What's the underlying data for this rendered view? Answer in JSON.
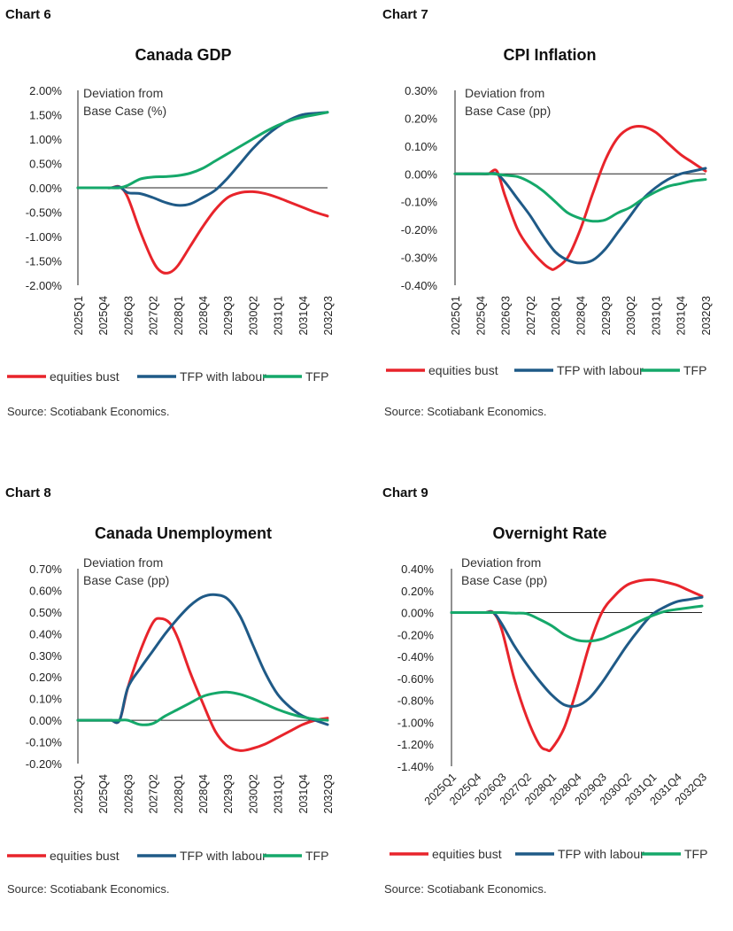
{
  "chart_data": [
    {
      "type": "line",
      "chart_label": "Chart 6",
      "title": "Canada GDP",
      "annotation": [
        "Deviation from",
        "Base Case (%)"
      ],
      "x": [
        "2025Q1",
        "2025Q4",
        "2026Q3",
        "2027Q2",
        "2028Q1",
        "2028Q4",
        "2029Q3",
        "2030Q2",
        "2031Q1",
        "2031Q4",
        "2032Q3"
      ],
      "ylim": [
        -2.0,
        2.0
      ],
      "yticks": [
        2.0,
        1.5,
        1.0,
        0.5,
        0.0,
        -0.5,
        -1.0,
        -1.5,
        -2.0
      ],
      "tick_labels": [
        "2.00%",
        "1.50%",
        "1.00%",
        "0.50%",
        "0.00%",
        "-0.50%",
        "-1.00%",
        "-1.50%",
        "-2.00%"
      ],
      "series": [
        {
          "name": "equities bust",
          "color": "#e8242b",
          "x": [
            0,
            1,
            1.33,
            1.67,
            2,
            2.5,
            3,
            3.33,
            3.67,
            4,
            4.5,
            5,
            5.5,
            6,
            6.5,
            7,
            7.5,
            8,
            8.5,
            9,
            9.5,
            10
          ],
          "values": [
            0,
            0,
            0,
            0.02,
            -0.2,
            -0.9,
            -1.5,
            -1.72,
            -1.74,
            -1.6,
            -1.2,
            -0.8,
            -0.45,
            -0.2,
            -0.1,
            -0.08,
            -0.12,
            -0.2,
            -0.3,
            -0.4,
            -0.5,
            -0.58
          ]
        },
        {
          "name": "TFP with labour",
          "color": "#1f5a87",
          "x": [
            0,
            1,
            1.33,
            1.67,
            2,
            2.5,
            3,
            3.5,
            4,
            4.5,
            5,
            5.5,
            6,
            6.5,
            7,
            7.5,
            8,
            8.5,
            9,
            9.5,
            10
          ],
          "values": [
            0,
            0,
            0,
            0.02,
            -0.1,
            -0.12,
            -0.2,
            -0.3,
            -0.36,
            -0.33,
            -0.2,
            -0.05,
            0.2,
            0.5,
            0.8,
            1.05,
            1.25,
            1.4,
            1.5,
            1.53,
            1.55
          ]
        },
        {
          "name": "TFP",
          "color": "#15a86a",
          "x": [
            0,
            1,
            1.33,
            1.67,
            2,
            2.5,
            3,
            3.5,
            4,
            4.5,
            5,
            5.5,
            6,
            6.5,
            7,
            7.5,
            8,
            8.5,
            9,
            9.5,
            10
          ],
          "values": [
            0,
            0,
            0,
            0,
            0.05,
            0.18,
            0.22,
            0.23,
            0.25,
            0.3,
            0.4,
            0.55,
            0.7,
            0.85,
            1.0,
            1.15,
            1.28,
            1.38,
            1.45,
            1.5,
            1.55
          ]
        }
      ],
      "source": "Source: Scotiabank Economics."
    },
    {
      "type": "line",
      "chart_label": "Chart 7",
      "title": "CPI Inflation",
      "annotation": [
        "Deviation from",
        "Base Case (pp)"
      ],
      "x": [
        "2025Q1",
        "2025Q4",
        "2026Q3",
        "2027Q2",
        "2028Q1",
        "2028Q4",
        "2029Q3",
        "2030Q2",
        "2031Q1",
        "2031Q4",
        "2032Q3"
      ],
      "ylim": [
        -0.4,
        0.3
      ],
      "yticks": [
        0.3,
        0.2,
        0.1,
        0.0,
        -0.1,
        -0.2,
        -0.3,
        -0.4
      ],
      "tick_labels": [
        "0.30%",
        "0.20%",
        "0.10%",
        "0.00%",
        "-0.10%",
        "-0.20%",
        "-0.30%",
        "-0.40%"
      ],
      "series": [
        {
          "name": "equities bust",
          "color": "#e8242b",
          "x": [
            0,
            1,
            1.33,
            1.67,
            2,
            2.5,
            3,
            3.5,
            3.8,
            4,
            4.5,
            5,
            5.5,
            6,
            6.5,
            7,
            7.5,
            8,
            8.5,
            9,
            9.5,
            10
          ],
          "values": [
            0,
            0,
            0,
            0.01,
            -0.08,
            -0.2,
            -0.27,
            -0.32,
            -0.34,
            -0.34,
            -0.3,
            -0.2,
            -0.07,
            0.05,
            0.13,
            0.165,
            0.17,
            0.15,
            0.11,
            0.07,
            0.04,
            0.01
          ]
        },
        {
          "name": "TFP with labour",
          "color": "#1f5a87",
          "x": [
            0,
            1,
            1.33,
            1.67,
            2,
            2.5,
            3,
            3.5,
            4,
            4.5,
            5,
            5.5,
            6,
            6.5,
            7,
            7.5,
            8,
            8.5,
            9,
            9.5,
            10
          ],
          "values": [
            0,
            0,
            0,
            0,
            -0.03,
            -0.09,
            -0.15,
            -0.22,
            -0.28,
            -0.31,
            -0.32,
            -0.31,
            -0.27,
            -0.21,
            -0.15,
            -0.09,
            -0.05,
            -0.02,
            0,
            0.01,
            0.02
          ]
        },
        {
          "name": "TFP",
          "color": "#15a86a",
          "x": [
            0,
            1,
            1.5,
            2,
            2.5,
            3,
            3.5,
            4,
            4.5,
            5,
            5.5,
            6,
            6.5,
            7,
            7.5,
            8,
            8.5,
            9,
            9.5,
            10
          ],
          "values": [
            0,
            0,
            0,
            -0.005,
            -0.01,
            -0.03,
            -0.06,
            -0.1,
            -0.14,
            -0.16,
            -0.17,
            -0.165,
            -0.14,
            -0.12,
            -0.09,
            -0.065,
            -0.045,
            -0.035,
            -0.025,
            -0.02
          ]
        }
      ],
      "source": "Source: Scotiabank Economics."
    },
    {
      "type": "line",
      "chart_label": "Chart 8",
      "title": "Canada Unemployment",
      "annotation": [
        "Deviation from",
        "Base Case (pp)"
      ],
      "x": [
        "2025Q1",
        "2025Q4",
        "2026Q3",
        "2027Q2",
        "2028Q1",
        "2028Q4",
        "2029Q3",
        "2030Q2",
        "2031Q1",
        "2031Q4",
        "2032Q3"
      ],
      "ylim": [
        -0.2,
        0.7
      ],
      "yticks": [
        0.7,
        0.6,
        0.5,
        0.4,
        0.3,
        0.2,
        0.1,
        0.0,
        -0.1,
        -0.2
      ],
      "tick_labels": [
        "0.70%",
        "0.60%",
        "0.50%",
        "0.40%",
        "0.30%",
        "0.20%",
        "0.10%",
        "0.00%",
        "-0.10%",
        "-0.20%"
      ],
      "series": [
        {
          "name": "equities bust",
          "color": "#e8242b",
          "x": [
            0,
            1,
            1.33,
            1.67,
            2,
            2.5,
            3,
            3.3,
            3.67,
            4,
            4.5,
            5,
            5.5,
            6,
            6.5,
            7,
            7.5,
            8,
            8.5,
            9,
            9.5,
            10
          ],
          "values": [
            0,
            0,
            0,
            0,
            0.15,
            0.32,
            0.45,
            0.47,
            0.45,
            0.38,
            0.22,
            0.08,
            -0.05,
            -0.12,
            -0.14,
            -0.13,
            -0.11,
            -0.08,
            -0.05,
            -0.02,
            0,
            0.01
          ]
        },
        {
          "name": "TFP with labour",
          "color": "#1f5a87",
          "x": [
            0,
            1,
            1.33,
            1.67,
            2,
            2.5,
            3,
            3.5,
            4,
            4.5,
            5,
            5.5,
            6,
            6.5,
            7,
            7.5,
            8,
            8.5,
            9,
            9.5,
            10
          ],
          "values": [
            0,
            0,
            0,
            0,
            0.15,
            0.24,
            0.32,
            0.4,
            0.47,
            0.53,
            0.57,
            0.58,
            0.56,
            0.48,
            0.35,
            0.22,
            0.12,
            0.06,
            0.02,
            0,
            -0.02
          ]
        },
        {
          "name": "TFP",
          "color": "#15a86a",
          "x": [
            0,
            1,
            1.33,
            1.67,
            2,
            2.5,
            3,
            3.5,
            4,
            4.5,
            5,
            5.5,
            6,
            6.5,
            7,
            7.5,
            8,
            8.5,
            9,
            9.5,
            10
          ],
          "values": [
            0,
            0,
            0,
            0,
            0,
            -0.02,
            -0.015,
            0.02,
            0.05,
            0.08,
            0.11,
            0.125,
            0.13,
            0.12,
            0.1,
            0.075,
            0.05,
            0.03,
            0.015,
            0.005,
            0
          ]
        }
      ],
      "source": "Source: Scotiabank Economics."
    },
    {
      "type": "line",
      "chart_label": "Chart 9",
      "title": "Overnight Rate",
      "annotation": [
        "Deviation from",
        "Base Case (pp)"
      ],
      "x": [
        "2025Q1",
        "2025Q4",
        "2026Q3",
        "2027Q2",
        "2028Q1",
        "2028Q4",
        "2029Q3",
        "2030Q2",
        "2031Q1",
        "2031Q4",
        "2032Q3"
      ],
      "ylim": [
        -1.4,
        0.4
      ],
      "yticks": [
        0.4,
        0.2,
        0.0,
        -0.2,
        -0.4,
        -0.6,
        -0.8,
        -1.0,
        -1.2,
        -1.4
      ],
      "tick_labels": [
        "0.40%",
        "0.20%",
        "0.00%",
        "-0.20%",
        "-0.40%",
        "-0.60%",
        "-0.80%",
        "-1.00%",
        "-1.20%",
        "-1.40%"
      ],
      "series": [
        {
          "name": "equities bust",
          "color": "#e8242b",
          "x": [
            0,
            1,
            1.33,
            1.67,
            2,
            2.5,
            3,
            3.5,
            3.8,
            4,
            4.5,
            5,
            5.5,
            6,
            6.5,
            7,
            7.5,
            8,
            8.5,
            9,
            9.5,
            10
          ],
          "values": [
            0,
            0,
            0,
            0,
            -0.15,
            -0.6,
            -0.95,
            -1.2,
            -1.25,
            -1.24,
            -1.05,
            -0.7,
            -0.3,
            0.0,
            0.15,
            0.25,
            0.29,
            0.3,
            0.28,
            0.25,
            0.2,
            0.15
          ]
        },
        {
          "name": "TFP with labour",
          "color": "#1f5a87",
          "x": [
            0,
            1,
            1.33,
            1.67,
            2,
            2.5,
            3,
            3.5,
            4,
            4.5,
            5,
            5.5,
            6,
            6.5,
            7,
            7.5,
            8,
            8.5,
            9,
            9.5,
            10
          ],
          "values": [
            0,
            0,
            0,
            0,
            -0.1,
            -0.3,
            -0.47,
            -0.62,
            -0.75,
            -0.84,
            -0.85,
            -0.78,
            -0.64,
            -0.47,
            -0.3,
            -0.15,
            -0.02,
            0.05,
            0.1,
            0.12,
            0.14
          ]
        },
        {
          "name": "TFP",
          "color": "#15a86a",
          "x": [
            0,
            1,
            1.5,
            2,
            2.5,
            3,
            3.5,
            4,
            4.5,
            5,
            5.5,
            6,
            6.5,
            7,
            7.5,
            8,
            8.5,
            9,
            9.5,
            10
          ],
          "values": [
            0,
            0,
            0,
            0,
            -0.005,
            -0.01,
            -0.06,
            -0.12,
            -0.2,
            -0.25,
            -0.26,
            -0.24,
            -0.19,
            -0.14,
            -0.08,
            -0.03,
            0.01,
            0.03,
            0.045,
            0.06
          ]
        }
      ],
      "source": "Source: Scotiabank Economics."
    }
  ]
}
